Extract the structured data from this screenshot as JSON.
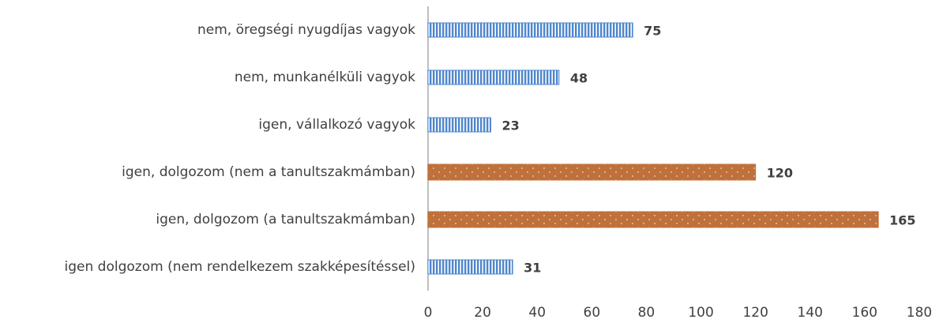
{
  "chart_data": {
    "type": "bar",
    "orientation": "horizontal",
    "categories": [
      "nem, öregségi nyugdíjas vagyok",
      "nem, munkanélküli vagyok",
      "igen, vállalkozó vagyok",
      "igen, dolgozom (nem a tanultszakmámban)",
      "igen, dolgozom (a tanultszakmámban)",
      "igen dolgozom (nem rendelkezem szakképesítéssel)"
    ],
    "values": [
      75,
      48,
      23,
      120,
      165,
      31
    ],
    "colors": [
      "#4f86cc",
      "#4f86cc",
      "#4f86cc",
      "#c0703a",
      "#c0703a",
      "#4f86cc"
    ],
    "xlim": [
      0,
      180
    ],
    "xticks": [
      0,
      20,
      40,
      60,
      80,
      100,
      120,
      140,
      160,
      180
    ]
  }
}
